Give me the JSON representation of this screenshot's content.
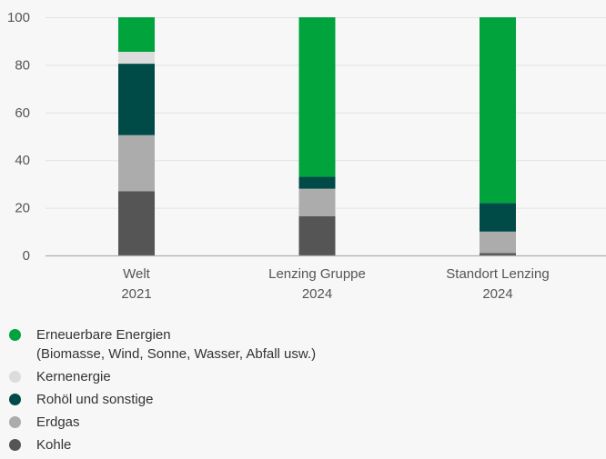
{
  "chart_data": {
    "type": "bar",
    "stacked": true,
    "categories": [
      {
        "line1": "Welt",
        "line2": "2021"
      },
      {
        "line1": "Lenzing Gruppe",
        "line2": "2024"
      },
      {
        "line1": "Standort Lenzing",
        "line2": "2024"
      }
    ],
    "series": [
      {
        "name": "Kohle",
        "color": "#555555",
        "values": [
          27,
          16.5,
          1
        ]
      },
      {
        "name": "Erdgas",
        "color": "#acacac",
        "values": [
          23.5,
          11.5,
          9
        ]
      },
      {
        "name": "Rohöl und sonstige",
        "color": "#004b47",
        "values": [
          30,
          5,
          12
        ]
      },
      {
        "name": "Kernenergie",
        "color": "#dcdcdc",
        "values": [
          5,
          0,
          0
        ]
      },
      {
        "name": "Erneuerbare Energien",
        "name_line2": "(Biomasse, Wind, Sonne, Wasser, Abfall usw.)",
        "color": "#00a33c",
        "values": [
          14.5,
          67,
          78
        ]
      }
    ],
    "yticks": [
      0,
      20,
      40,
      60,
      80,
      100
    ],
    "ylim": [
      0,
      100
    ],
    "grid": true,
    "legend_position": "bottom-left"
  }
}
